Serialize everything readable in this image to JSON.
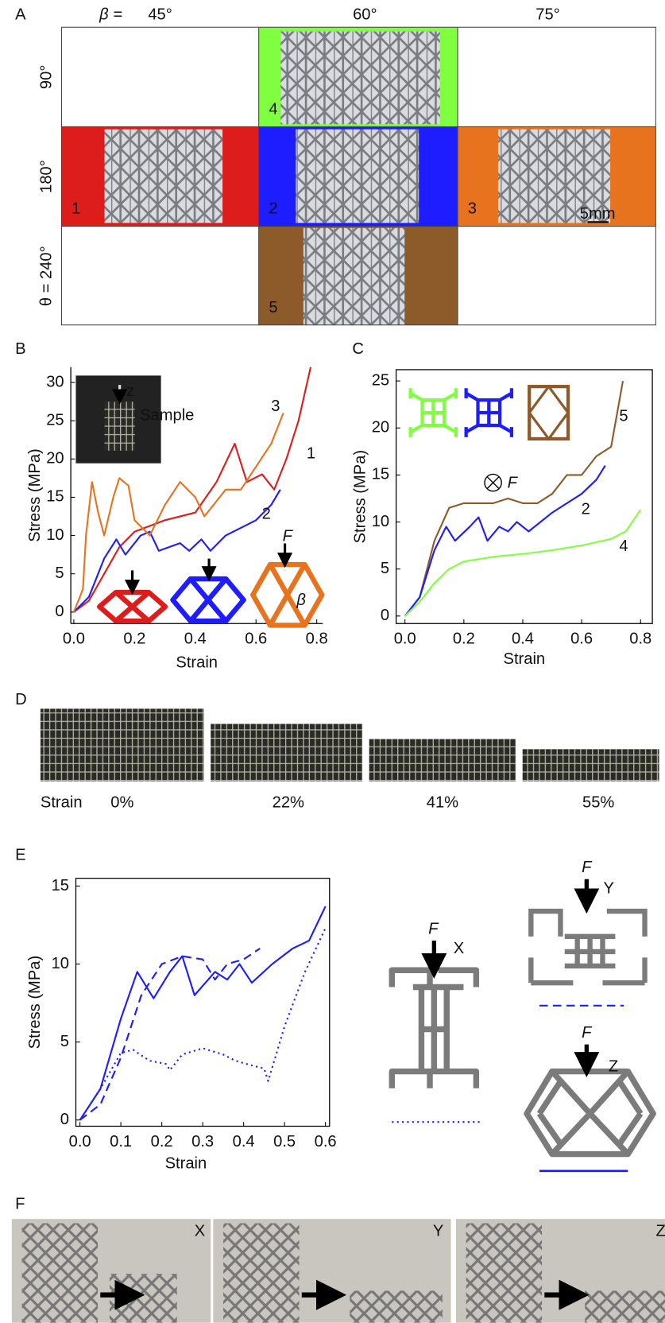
{
  "panel_labels": [
    "A",
    "B",
    "C",
    "D",
    "E",
    "F"
  ],
  "panel_a": {
    "beta_label": "β =",
    "columns": [
      "45°",
      "60°",
      "75°"
    ],
    "rows": [
      "90°",
      "180°",
      "θ = 240°"
    ],
    "samples": [
      {
        "number": "4",
        "color": "#80ff40"
      },
      {
        "number": "1",
        "color": "#dd1c1c"
      },
      {
        "number": "2",
        "color": "#1d1dff"
      },
      {
        "number": "3",
        "color": "#e8731f"
      },
      {
        "number": "5",
        "color": "#8d5a2a"
      }
    ],
    "scale_bar": "5mm"
  },
  "panel_d": {
    "strain_label": "Strain",
    "strains": [
      "0%",
      "22%",
      "41%",
      "55%"
    ]
  },
  "panel_f": {
    "views": [
      "X",
      "Y",
      "Z"
    ]
  },
  "force_label": "F",
  "beta_symbol": "β",
  "inset_labels": [
    "z",
    "Sample"
  ],
  "chart_data": [
    {
      "type": "line",
      "x_label": "Strain",
      "y_label": "Stress (MPa)",
      "box": false,
      "xlim": [
        -0.01,
        0.82
      ],
      "ylim": [
        -1.5,
        32
      ],
      "xticks": [
        {
          "value": 0,
          "label": "0.0"
        },
        0.2,
        0.4,
        0.6,
        0.8
      ],
      "yticks": [
        0,
        5,
        10,
        15,
        20,
        25,
        30
      ],
      "series": [
        {
          "name": "1",
          "color": "#dd1c1c",
          "style": "solid",
          "x": [
            0,
            0.05,
            0.1,
            0.15,
            0.2,
            0.3,
            0.4,
            0.47,
            0.53,
            0.57,
            0.62,
            0.66,
            0.7,
            0.74,
            0.78
          ],
          "values": [
            0,
            1.5,
            5,
            8.5,
            10.5,
            12,
            13,
            17,
            22,
            17,
            18,
            16,
            20,
            25,
            32
          ]
        },
        {
          "name": "2",
          "color": "#1d1dff",
          "style": "solid",
          "x": [
            0,
            0.05,
            0.1,
            0.14,
            0.17,
            0.22,
            0.25,
            0.28,
            0.35,
            0.38,
            0.42,
            0.45,
            0.5,
            0.55,
            0.6,
            0.65,
            0.68
          ],
          "values": [
            0,
            2,
            7,
            9.5,
            7.5,
            10,
            10.5,
            8,
            9,
            8,
            9.5,
            8,
            10,
            11,
            12,
            14,
            16
          ]
        },
        {
          "name": "3",
          "color": "#e8731f",
          "style": "solid",
          "x": [
            0,
            0.03,
            0.04,
            0.06,
            0.08,
            0.1,
            0.13,
            0.15,
            0.18,
            0.2,
            0.25,
            0.3,
            0.35,
            0.4,
            0.43,
            0.5,
            0.55,
            0.6,
            0.65,
            0.69
          ],
          "values": [
            0,
            3,
            10,
            17,
            13,
            10,
            15,
            17.5,
            16.5,
            12,
            10,
            14,
            17,
            15,
            12.5,
            16,
            16,
            19,
            22,
            26
          ]
        }
      ]
    },
    {
      "type": "line",
      "x_label": "Strain",
      "y_label": "Stress (MPa)",
      "box": true,
      "xlim": [
        -0.03,
        0.84
      ],
      "ylim": [
        -0.8,
        26.2
      ],
      "xticks": [
        {
          "value": 0,
          "label": "0.0"
        },
        0.2,
        0.4,
        0.6,
        0.8
      ],
      "yticks": [
        0,
        5,
        10,
        15,
        20,
        25
      ],
      "series": [
        {
          "name": "5",
          "color": "#8d5a2a",
          "style": "solid",
          "x": [
            0,
            0.05,
            0.1,
            0.15,
            0.2,
            0.3,
            0.35,
            0.4,
            0.45,
            0.5,
            0.55,
            0.6,
            0.65,
            0.7,
            0.74
          ],
          "values": [
            0,
            2,
            8,
            11.5,
            12,
            12,
            12.5,
            12,
            12,
            13,
            15,
            15,
            17,
            18,
            25
          ]
        },
        {
          "name": "2",
          "color": "#1d1dff",
          "style": "solid",
          "x": [
            0,
            0.05,
            0.1,
            0.14,
            0.17,
            0.22,
            0.25,
            0.28,
            0.32,
            0.35,
            0.38,
            0.42,
            0.5,
            0.55,
            0.6,
            0.65,
            0.68
          ],
          "values": [
            0,
            2,
            7,
            9.5,
            8,
            9.5,
            10.5,
            8,
            9.5,
            9,
            10,
            9,
            11,
            12,
            13,
            14.5,
            16
          ]
        },
        {
          "name": "4",
          "color": "#80ff40",
          "style": "solid",
          "x": [
            0,
            0.05,
            0.1,
            0.15,
            0.2,
            0.3,
            0.4,
            0.5,
            0.6,
            0.7,
            0.75,
            0.8
          ],
          "values": [
            0,
            1.5,
            3.5,
            5,
            5.8,
            6.3,
            6.6,
            7,
            7.5,
            8.2,
            9,
            11.3
          ]
        }
      ]
    },
    {
      "type": "line",
      "x_label": "Strain",
      "y_label": "Stress (MPa)",
      "box": true,
      "xlim": [
        -0.01,
        0.61
      ],
      "ylim": [
        -0.4,
        15.5
      ],
      "xticks": [
        {
          "value": 0,
          "label": "0.0"
        },
        0.1,
        0.2,
        0.3,
        0.4,
        0.5,
        0.6
      ],
      "yticks": [
        0,
        5,
        10,
        15
      ],
      "series": [
        {
          "name": "Z",
          "color": "#1d1dff",
          "style": "solid",
          "x": [
            0,
            0.05,
            0.1,
            0.14,
            0.18,
            0.22,
            0.25,
            0.28,
            0.33,
            0.36,
            0.39,
            0.42,
            0.47,
            0.52,
            0.56,
            0.6
          ],
          "values": [
            0,
            2,
            6.5,
            9.5,
            7.8,
            9.5,
            10.5,
            8,
            9.5,
            9,
            10,
            8.8,
            10,
            11,
            11.5,
            13.7
          ]
        },
        {
          "name": "Y",
          "color": "#1d1dff",
          "style": "dashed",
          "x": [
            0,
            0.05,
            0.1,
            0.15,
            0.2,
            0.25,
            0.3,
            0.33,
            0.36,
            0.4,
            0.44
          ],
          "values": [
            0,
            1,
            4,
            8,
            10,
            10.5,
            10.3,
            9,
            10,
            10.3,
            11
          ]
        },
        {
          "name": "X",
          "color": "#1d1dff",
          "style": "dotted",
          "x": [
            0,
            0.05,
            0.1,
            0.13,
            0.17,
            0.21,
            0.22,
            0.25,
            0.3,
            0.35,
            0.38,
            0.42,
            0.45,
            0.46,
            0.5,
            0.55,
            0.6
          ],
          "values": [
            0,
            2,
            4.3,
            4.5,
            3.8,
            3.6,
            3.2,
            4.2,
            4.6,
            4.2,
            3.8,
            3.5,
            3.3,
            2.5,
            6,
            9.5,
            12.3
          ]
        }
      ]
    }
  ]
}
